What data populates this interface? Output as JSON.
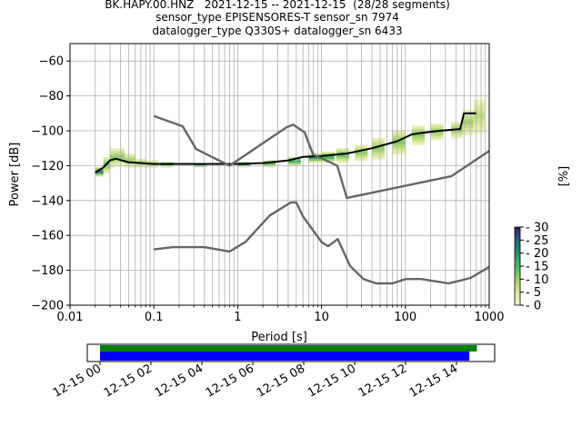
{
  "title_lines": [
    "BK.HAPY.00.HNZ   2021-12-15 -- 2021-12-15  (28/28 segments)",
    "sensor_type EPISENSORES-T sensor_sn 7974",
    "datalogger_type Q330S+ datalogger_sn 6433"
  ],
  "chart_data": {
    "type": "line",
    "xlabel": "Period [s]",
    "ylabel": "Power [dB]",
    "xscale": "log",
    "xlim": [
      0.01,
      1000
    ],
    "ylim": [
      -200,
      -50
    ],
    "x_ticks": [
      "0.01",
      "0.1",
      "1",
      "10",
      "100",
      "1000"
    ],
    "x_tick_values": [
      0.01,
      0.1,
      1,
      10,
      100,
      1000
    ],
    "y_ticks": [
      "−60",
      "−80",
      "−100",
      "−120",
      "−140",
      "−160",
      "−180",
      "−200"
    ],
    "y_tick_values": [
      -60,
      -80,
      -100,
      -120,
      -140,
      -160,
      -180,
      -200
    ],
    "grid": true,
    "colorbar": {
      "label": "[%]",
      "ticks": [
        "0",
        "5",
        "10",
        "15",
        "20",
        "25",
        "30"
      ],
      "tick_values": [
        0,
        5,
        10,
        15,
        20,
        25,
        30
      ],
      "range": [
        0,
        30
      ]
    },
    "series": [
      {
        "role": "mean",
        "color": "#000000",
        "points": [
          [
            0.02,
            -124
          ],
          [
            0.025,
            -121
          ],
          [
            0.03,
            -117
          ],
          [
            0.035,
            -116
          ],
          [
            0.05,
            -118
          ],
          [
            0.1,
            -119
          ],
          [
            0.5,
            -119
          ],
          [
            1,
            -119
          ],
          [
            2,
            -118.5
          ],
          [
            4,
            -117
          ],
          [
            6,
            -115
          ],
          [
            10,
            -114.5
          ],
          [
            20,
            -113
          ],
          [
            40,
            -110
          ],
          [
            80,
            -106
          ],
          [
            120,
            -102
          ],
          [
            250,
            -100
          ],
          [
            450,
            -99
          ],
          [
            500,
            -90
          ],
          [
            700,
            -90
          ]
        ]
      },
      {
        "role": "new-high-noise-model",
        "color": "#666666",
        "points": [
          [
            0.1,
            -91.5
          ],
          [
            0.22,
            -97.4
          ],
          [
            0.32,
            -110.5
          ],
          [
            0.8,
            -120
          ],
          [
            3.8,
            -98
          ],
          [
            4.6,
            -96.5
          ],
          [
            6.3,
            -101
          ],
          [
            7.9,
            -113.5
          ],
          [
            15.4,
            -120
          ],
          [
            20,
            -138.5
          ],
          [
            354.8,
            -126
          ],
          [
            1000,
            -111.5
          ]
        ]
      },
      {
        "role": "new-low-noise-model",
        "color": "#666666",
        "points": [
          [
            0.1,
            -168
          ],
          [
            0.17,
            -166.7
          ],
          [
            0.4,
            -166.7
          ],
          [
            0.8,
            -169.2
          ],
          [
            1.24,
            -163.7
          ],
          [
            2.4,
            -148.6
          ],
          [
            4.3,
            -141.1
          ],
          [
            5,
            -141.1
          ],
          [
            6,
            -149
          ],
          [
            10,
            -163.8
          ],
          [
            12,
            -166.2
          ],
          [
            15.6,
            -162.1
          ],
          [
            21.9,
            -177.5
          ],
          [
            31.6,
            -185
          ],
          [
            45,
            -187.5
          ],
          [
            70,
            -187.5
          ],
          [
            101,
            -185
          ],
          [
            154,
            -185
          ],
          [
            328,
            -187.5
          ],
          [
            600,
            -184.4
          ],
          [
            1000,
            -178
          ]
        ]
      }
    ],
    "density": [
      {
        "period": 0.02,
        "min": -126,
        "max": -121,
        "peak": 25
      },
      {
        "period": 0.025,
        "min": -124,
        "max": -115,
        "peak": 15
      },
      {
        "period": 0.03,
        "min": -121,
        "max": -110,
        "peak": 12
      },
      {
        "period": 0.035,
        "min": -120,
        "max": -110,
        "peak": 12
      },
      {
        "period": 0.045,
        "min": -121,
        "max": -113,
        "peak": 10
      },
      {
        "period": 0.06,
        "min": -121,
        "max": -116,
        "peak": 10
      },
      {
        "period": 0.08,
        "min": -121,
        "max": -117,
        "peak": 12
      },
      {
        "period": 0.12,
        "min": -120.5,
        "max": -118,
        "peak": 22
      },
      {
        "period": 0.3,
        "min": -120.5,
        "max": -118.5,
        "peak": 28
      },
      {
        "period": 1,
        "min": -120.5,
        "max": -118,
        "peak": 28
      },
      {
        "period": 2,
        "min": -120.5,
        "max": -117,
        "peak": 20
      },
      {
        "period": 4,
        "min": -120,
        "max": -115,
        "peak": 18
      },
      {
        "period": 7,
        "min": -118,
        "max": -113,
        "peak": 20
      },
      {
        "period": 10,
        "min": -118,
        "max": -112,
        "peak": 18
      },
      {
        "period": 15,
        "min": -118,
        "max": -110,
        "peak": 15
      },
      {
        "period": 25,
        "min": -117,
        "max": -108,
        "peak": 12
      },
      {
        "period": 40,
        "min": -116,
        "max": -104,
        "peak": 12
      },
      {
        "period": 70,
        "min": -113,
        "max": -100,
        "peak": 12
      },
      {
        "period": 120,
        "min": -108,
        "max": -97,
        "peak": 12
      },
      {
        "period": 200,
        "min": -105,
        "max": -96,
        "peak": 12
      },
      {
        "period": 350,
        "min": -104,
        "max": -95,
        "peak": 12
      },
      {
        "period": 480,
        "min": -102,
        "max": -88,
        "peak": 10
      },
      {
        "period": 650,
        "min": -101,
        "max": -82,
        "peak": 8
      }
    ],
    "timeline": {
      "tick_labels": [
        "12-15 00",
        "12-15 02",
        "12-15 04",
        "12-15 06",
        "12-15 08",
        "12-15 10",
        "12-15 12",
        "12-15 14"
      ],
      "tick_hours": [
        0,
        2,
        4,
        6,
        8,
        10,
        12,
        14
      ],
      "range_hours": [
        -0.5,
        15.5
      ],
      "green_bar_hours": [
        0,
        14.8
      ],
      "blue_bar_hours": [
        0,
        14.5
      ],
      "green_color": "#008000",
      "blue_color": "#0000ff"
    }
  }
}
